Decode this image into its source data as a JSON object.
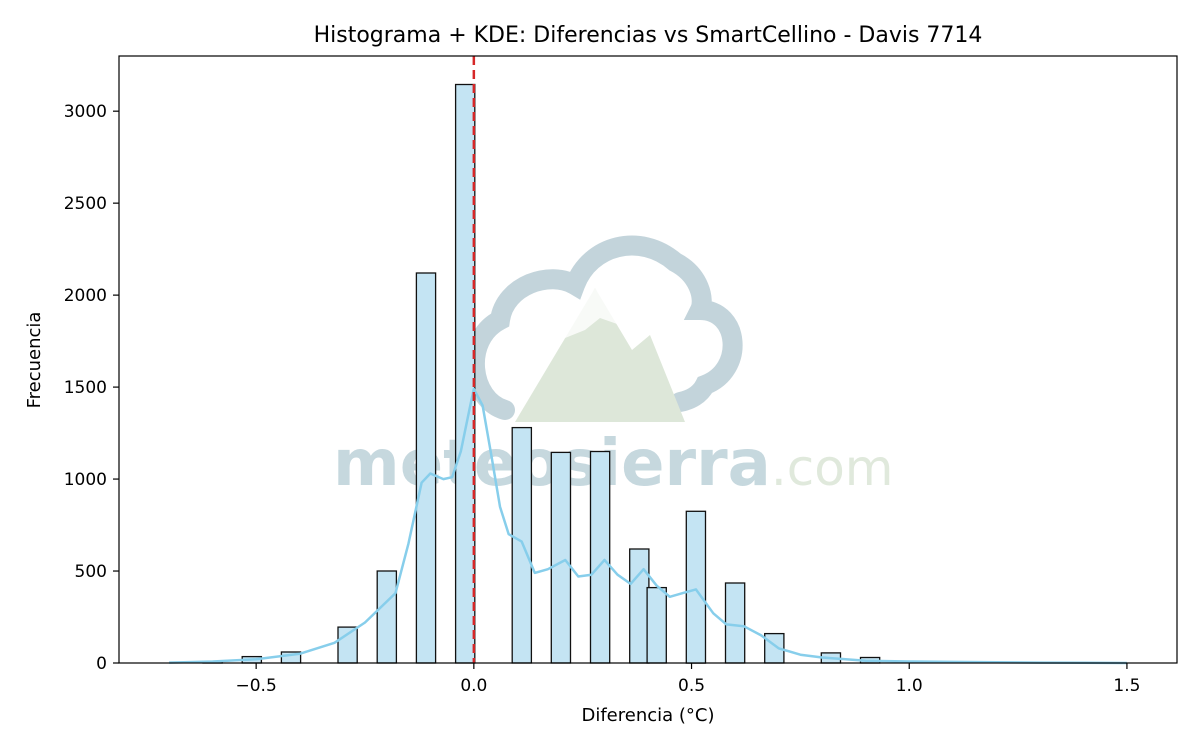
{
  "chart_data": {
    "type": "bar",
    "title": "Histograma + KDE: Diferencias vs SmartCellino - Davis 7714",
    "xlabel": "Diferencia (°C)",
    "ylabel": "Frecuencia",
    "xlim": [
      -0.815,
      1.615
    ],
    "ylim": [
      0,
      3300
    ],
    "xticks": [
      -0.5,
      0.0,
      0.5,
      1.0,
      1.5
    ],
    "xtick_labels": [
      "−0.5",
      "0.0",
      "0.5",
      "1.0",
      "1.5"
    ],
    "yticks": [
      0,
      500,
      1000,
      1500,
      2000,
      2500,
      3000
    ],
    "ytick_labels": [
      "0",
      "500",
      "1000",
      "1500",
      "2000",
      "2500",
      "3000"
    ],
    "grid": false,
    "bin_width": 0.044,
    "bins": [
      {
        "x": -0.6,
        "count": 10
      },
      {
        "x": -0.51,
        "count": 35
      },
      {
        "x": -0.42,
        "count": 60
      },
      {
        "x": -0.29,
        "count": 195
      },
      {
        "x": -0.2,
        "count": 500
      },
      {
        "x": -0.11,
        "count": 2120
      },
      {
        "x": -0.02,
        "count": 3145
      },
      {
        "x": 0.11,
        "count": 1280
      },
      {
        "x": 0.2,
        "count": 1145
      },
      {
        "x": 0.29,
        "count": 1150
      },
      {
        "x": 0.38,
        "count": 620
      },
      {
        "x": 0.42,
        "count": 410
      },
      {
        "x": 0.51,
        "count": 825
      },
      {
        "x": 0.6,
        "count": 435
      },
      {
        "x": 0.69,
        "count": 160
      },
      {
        "x": 0.82,
        "count": 55
      },
      {
        "x": 0.91,
        "count": 30
      }
    ],
    "kde": {
      "x": [
        -0.7,
        -0.6,
        -0.5,
        -0.4,
        -0.32,
        -0.25,
        -0.18,
        -0.15,
        -0.12,
        -0.1,
        -0.07,
        -0.05,
        -0.03,
        -0.01,
        0.0,
        0.02,
        0.04,
        0.06,
        0.08,
        0.11,
        0.14,
        0.17,
        0.21,
        0.24,
        0.27,
        0.3,
        0.33,
        0.36,
        0.39,
        0.42,
        0.45,
        0.48,
        0.51,
        0.55,
        0.58,
        0.62,
        0.66,
        0.7,
        0.75,
        0.8,
        0.9,
        1.0,
        1.1,
        1.2,
        1.3,
        1.4,
        1.5
      ],
      "y": [
        2,
        8,
        20,
        50,
        110,
        220,
        380,
        650,
        980,
        1030,
        1000,
        1010,
        1150,
        1380,
        1490,
        1400,
        1130,
        850,
        700,
        660,
        490,
        510,
        560,
        470,
        480,
        560,
        480,
        430,
        510,
        420,
        360,
        380,
        400,
        270,
        210,
        200,
        150,
        80,
        45,
        30,
        12,
        8,
        6,
        4,
        2,
        1,
        0
      ]
    },
    "reference_line": {
      "x": 0.0,
      "style": "dashed",
      "color": "#d62728"
    },
    "colors": {
      "bar_fill": "#c4e4f3",
      "bar_edge": "#111111",
      "kde_line": "#87ceeb"
    },
    "watermark": {
      "text_main": "meteosierra",
      "text_suffix": ".com"
    }
  }
}
